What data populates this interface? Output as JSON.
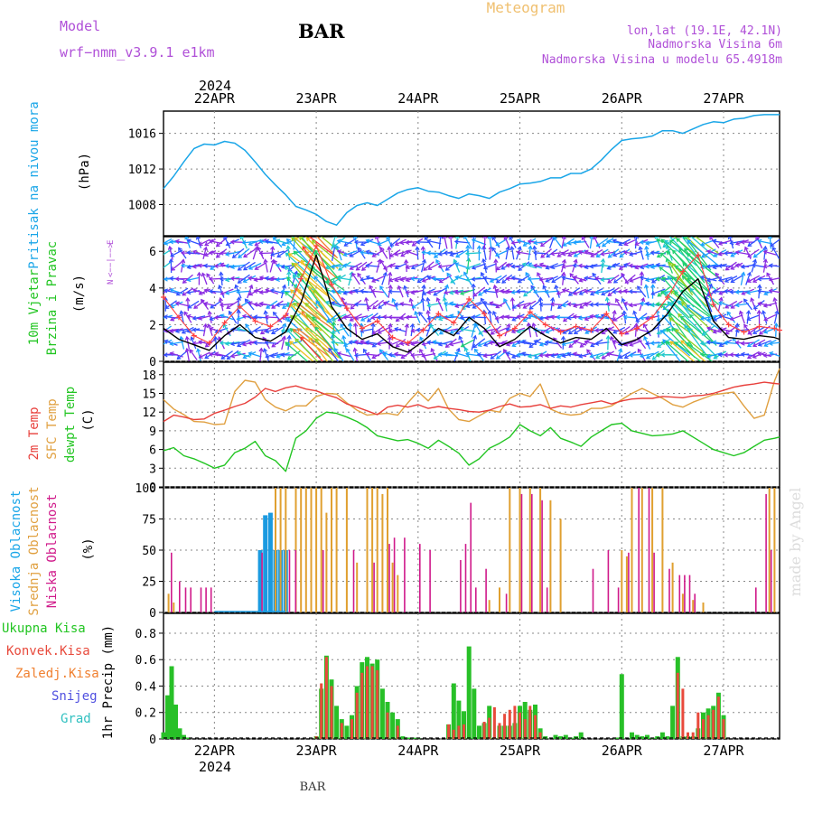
{
  "header": {
    "model_label": "Model",
    "model_name": "wrf−nmm_v3.9.1  e1km",
    "station": "BAR",
    "title": "Meteogram",
    "coords": "lon,lat (19.1E, 42.1N)",
    "elevation": "Nadmorska Visina 6m",
    "model_elevation": "Nadmorska Visina u modelu 65.4918m"
  },
  "footer": {
    "station": "BAR",
    "watermark": "made by Angel"
  },
  "colors": {
    "pressure": "#1aa6e8",
    "temp2m": "#e8403c",
    "sfc_temp": "#e0a040",
    "dewpt": "#22c522",
    "high_cloud": "#1a9ae0",
    "mid_cloud": "#e0a030",
    "low_cloud": "#d01a8a",
    "total_precip": "#28c028",
    "conv_precip": "#e84a3c",
    "freezing_precip": "#f08030",
    "snow": "#5050e0",
    "graupel": "#30c0c0",
    "wind_speed": "#000000",
    "gust": "#ff4040",
    "legend_violet": "#b050d8"
  },
  "chart_data": [
    {
      "type": "line",
      "panel": "pressure",
      "ylabel_parts": [
        "Pritisak na nivou mora",
        "(hPa)"
      ],
      "ylim": [
        1004.5,
        1018.5
      ],
      "yticks": [
        1008,
        1012,
        1016
      ],
      "x": [
        0,
        0.1,
        0.2,
        0.3,
        0.4,
        0.5,
        0.6,
        0.7,
        0.8,
        0.9,
        1.0,
        1.1,
        1.2,
        1.3,
        1.4,
        1.5,
        1.6,
        1.7,
        1.8,
        1.9,
        2.0,
        2.1,
        2.2,
        2.3,
        2.4,
        2.5,
        2.6,
        2.7,
        2.8,
        2.9,
        3.0,
        3.1,
        3.2,
        3.3,
        3.4,
        3.5,
        3.6,
        3.7,
        3.8,
        3.9,
        4.0,
        4.1,
        4.2,
        4.3,
        4.4,
        4.5,
        4.6,
        4.7,
        4.8,
        4.9,
        5.0,
        5.1,
        5.2,
        5.3,
        5.4,
        5.5,
        5.6,
        5.7,
        5.8,
        5.9,
        6.0,
        6.05
      ],
      "values": [
        1009.8,
        1011.2,
        1012.8,
        1014.3,
        1014.8,
        1014.7,
        1015.1,
        1014.9,
        1014.1,
        1012.8,
        1011.4,
        1010.2,
        1009.1,
        1007.8,
        1007.4,
        1006.9,
        1006.1,
        1005.7,
        1007.1,
        1007.9,
        1008.2,
        1007.9,
        1008.6,
        1009.3,
        1009.7,
        1009.9,
        1009.5,
        1009.4,
        1009.0,
        1008.7,
        1009.2,
        1009.0,
        1008.7,
        1009.4,
        1009.8,
        1010.3,
        1010.4,
        1010.6,
        1011.0,
        1011.0,
        1011.5,
        1011.5,
        1012.0,
        1013.0,
        1014.2,
        1015.2,
        1015.4,
        1015.5,
        1015.7,
        1016.3,
        1016.3,
        1016.0,
        1016.5,
        1017.0,
        1017.3,
        1017.2,
        1017.6,
        1017.7,
        1018.0,
        1018.1,
        1018.1,
        1018.1
      ]
    },
    {
      "type": "line",
      "panel": "wind",
      "ylabel_parts": [
        "10m Vjetar",
        "Brzina i Pravac",
        "(m/s)"
      ],
      "compass": [
        "N",
        "W",
        "E",
        "S"
      ],
      "ylim": [
        0,
        6.8
      ],
      "yticks": [
        0,
        2,
        4,
        6
      ],
      "x": [
        0,
        0.15,
        0.3,
        0.45,
        0.6,
        0.75,
        0.9,
        1.05,
        1.2,
        1.35,
        1.5,
        1.65,
        1.8,
        1.95,
        2.1,
        2.25,
        2.4,
        2.55,
        2.7,
        2.85,
        3.0,
        3.15,
        3.3,
        3.45,
        3.6,
        3.75,
        3.9,
        4.05,
        4.2,
        4.35,
        4.5,
        4.65,
        4.8,
        4.95,
        5.1,
        5.25,
        5.4,
        5.55,
        5.7,
        5.85,
        6.0,
        6.05
      ],
      "series": [
        {
          "values": [
            1.8,
            1.2,
            0.9,
            0.6,
            1.4,
            2.0,
            1.3,
            1.1,
            1.6,
            3.2,
            5.8,
            3.0,
            1.8,
            1.2,
            1.5,
            0.8,
            0.5,
            1.1,
            1.8,
            1.4,
            2.4,
            1.8,
            0.8,
            1.2,
            1.9,
            1.4,
            1.0,
            1.3,
            1.2,
            1.8,
            0.9,
            1.2,
            1.7,
            2.6,
            3.8,
            4.5,
            2.2,
            1.3,
            1.2,
            1.4,
            1.3,
            1.2
          ]
        },
        {
          "values": [
            3.5,
            2.4,
            1.4,
            1.0,
            2.1,
            3.0,
            2.2,
            1.9,
            2.5,
            4.5,
            6.3,
            4.2,
            2.9,
            1.8,
            2.2,
            1.3,
            1.0,
            1.7,
            2.6,
            2.1,
            3.4,
            2.6,
            1.4,
            1.8,
            2.7,
            2.0,
            1.6,
            1.9,
            1.7,
            2.6,
            1.5,
            1.8,
            2.4,
            3.5,
            4.9,
            5.8,
            3.1,
            2.0,
            1.6,
            1.9,
            1.8,
            1.7
          ]
        }
      ]
    },
    {
      "type": "line",
      "panel": "temperature",
      "ylabel_parts": [
        "2m Temp",
        "SFC Temp",
        "dewpt Temp",
        "(C)"
      ],
      "ylim": [
        0,
        20
      ],
      "yticks": [
        0,
        3,
        6,
        9,
        12,
        15,
        18
      ],
      "x": [
        0,
        0.1,
        0.2,
        0.3,
        0.4,
        0.5,
        0.6,
        0.7,
        0.8,
        0.9,
        1.0,
        1.1,
        1.2,
        1.3,
        1.4,
        1.5,
        1.6,
        1.7,
        1.8,
        1.9,
        2.0,
        2.1,
        2.2,
        2.3,
        2.4,
        2.5,
        2.6,
        2.7,
        2.8,
        2.9,
        3.0,
        3.1,
        3.2,
        3.3,
        3.4,
        3.5,
        3.6,
        3.7,
        3.8,
        3.9,
        4.0,
        4.1,
        4.2,
        4.3,
        4.4,
        4.5,
        4.6,
        4.7,
        4.8,
        4.9,
        5.0,
        5.1,
        5.2,
        5.3,
        5.4,
        5.5,
        5.6,
        5.7,
        5.8,
        5.9,
        6.0,
        6.05
      ],
      "series": [
        {
          "name": "2m Temp",
          "values": [
            10.5,
            11.5,
            11.2,
            10.8,
            10.9,
            11.8,
            12.3,
            12.9,
            13.4,
            14.4,
            15.8,
            15.3,
            15.9,
            16.2,
            15.7,
            15.4,
            14.8,
            14.3,
            13.3,
            12.8,
            12.2,
            11.6,
            12.8,
            13.1,
            12.8,
            13.2,
            12.6,
            12.9,
            12.6,
            12.4,
            12.1,
            12.0,
            12.3,
            12.9,
            13.3,
            12.8,
            12.9,
            13.2,
            12.6,
            13.0,
            12.8,
            13.2,
            13.5,
            13.8,
            13.3,
            13.8,
            14.1,
            14.2,
            14.2,
            14.5,
            14.4,
            14.3,
            14.6,
            14.7,
            15.0,
            15.5,
            16.0,
            16.3,
            16.5,
            16.8,
            16.6,
            16.5
          ]
        },
        {
          "name": "SFC Temp",
          "values": [
            14.0,
            12.5,
            11.6,
            10.5,
            10.4,
            10.0,
            10.1,
            15.3,
            17.1,
            16.8,
            14.0,
            12.8,
            12.2,
            13.0,
            13.0,
            14.5,
            15.0,
            14.9,
            13.5,
            12.3,
            11.5,
            11.7,
            11.8,
            11.5,
            13.5,
            15.3,
            13.8,
            15.8,
            12.5,
            10.8,
            10.5,
            11.4,
            12.3,
            12.0,
            14.2,
            15.0,
            14.5,
            16.5,
            12.5,
            11.8,
            11.5,
            11.7,
            12.6,
            12.6,
            13.0,
            14.0,
            15.0,
            15.8,
            15.0,
            14.2,
            13.2,
            12.8,
            13.6,
            14.2,
            14.8,
            15.0,
            15.2,
            13.0,
            11.0,
            11.5,
            17.0,
            19.0
          ]
        },
        {
          "name": "dewpt Temp",
          "values": [
            5.8,
            6.3,
            5.0,
            4.5,
            3.8,
            3.0,
            3.5,
            5.5,
            6.2,
            7.3,
            5.0,
            4.2,
            2.5,
            7.8,
            9.0,
            11.0,
            12.0,
            11.8,
            11.2,
            10.5,
            9.5,
            8.2,
            7.8,
            7.4,
            7.6,
            7.0,
            6.2,
            7.5,
            6.5,
            5.4,
            3.5,
            4.5,
            6.2,
            7.0,
            8.0,
            10.0,
            9.0,
            8.2,
            9.5,
            7.8,
            7.2,
            6.5,
            8.0,
            9.0,
            10.0,
            10.2,
            9.0,
            8.6,
            8.2,
            8.3,
            8.5,
            9.0,
            8.0,
            7.0,
            6.0,
            5.5,
            5.0,
            5.5,
            6.5,
            7.5,
            7.8,
            8.0
          ]
        }
      ]
    },
    {
      "type": "bar",
      "panel": "clouds",
      "ylabel_parts": [
        "Visoka Oblacnost",
        "Srednja Oblacnost",
        "Niska Oblacnost",
        "(%)"
      ],
      "ylim": [
        0,
        100
      ],
      "yticks": [
        0,
        25,
        50,
        75,
        100
      ],
      "series": [
        {
          "name": "Visoka Oblacnost",
          "x": [
            0.45,
            0.5,
            0.55,
            0.6,
            0.65,
            0.7,
            0.75,
            0.8,
            0.85,
            0.9,
            0.95,
            1.0,
            1.05,
            1.1,
            1.15,
            1.2
          ],
          "values": [
            0,
            0,
            0,
            0,
            0,
            0,
            0,
            0,
            0,
            0,
            50,
            78,
            80,
            50,
            50,
            50
          ]
        },
        {
          "name": "Srednja Oblacnost",
          "x": [
            0.05,
            0.1,
            1.1,
            1.15,
            1.2,
            1.3,
            1.35,
            1.4,
            1.45,
            1.5,
            1.55,
            1.6,
            1.65,
            1.7,
            1.8,
            1.9,
            2.0,
            2.05,
            2.1,
            2.15,
            2.2,
            2.25,
            2.3,
            3.2,
            3.3,
            3.4,
            3.5,
            3.6,
            3.7,
            3.8,
            3.9,
            4.5,
            4.55,
            4.6,
            4.7,
            4.8,
            4.9,
            5.0,
            5.1,
            5.2,
            5.3,
            5.95,
            6.0
          ],
          "values": [
            15,
            8,
            100,
            100,
            100,
            100,
            100,
            100,
            100,
            100,
            100,
            80,
            100,
            100,
            100,
            40,
            100,
            100,
            100,
            95,
            100,
            40,
            30,
            10,
            20,
            100,
            100,
            100,
            100,
            90,
            75,
            50,
            45,
            100,
            100,
            100,
            100,
            40,
            15,
            10,
            8,
            100,
            100
          ]
        },
        {
          "name": "Niska Oblacnost",
          "x": [
            0.06,
            0.14,
            0.2,
            0.25,
            0.35,
            0.4,
            0.45,
            0.95,
            1.22,
            1.28,
            1.55,
            1.85,
            2.05,
            2.2,
            2.25,
            2.35,
            2.5,
            2.6,
            2.9,
            2.95,
            3.0,
            3.05,
            3.15,
            3.35,
            3.5,
            3.6,
            3.7,
            3.75,
            4.2,
            4.35,
            4.45,
            4.55,
            4.65,
            4.75,
            4.8,
            4.95,
            5.05,
            5.1,
            5.15,
            5.2,
            5.8,
            5.9,
            5.95
          ],
          "values": [
            48,
            25,
            20,
            20,
            20,
            20,
            20,
            48,
            50,
            50,
            50,
            50,
            40,
            55,
            60,
            60,
            55,
            50,
            42,
            55,
            88,
            20,
            35,
            15,
            95,
            95,
            90,
            20,
            35,
            50,
            20,
            48,
            100,
            100,
            48,
            35,
            30,
            30,
            30,
            15,
            20,
            95,
            50
          ]
        }
      ]
    },
    {
      "type": "bar",
      "panel": "precipitation",
      "ylabel_parts": [
        "1hr Precip (mm)"
      ],
      "legend": [
        "Ukupna Kisa",
        "Konvek.Kisa",
        "Zaledj.Kisa",
        "Snijeg",
        "Grad"
      ],
      "ylim": [
        0,
        0.95
      ],
      "yticks": [
        0,
        0.2,
        0.4,
        0.6,
        0.8
      ],
      "series": [
        {
          "name": "Ukupna Kisa",
          "x": [
            0.0,
            0.04,
            0.08,
            0.12,
            0.16,
            0.2,
            0.24,
            1.5,
            1.55,
            1.6,
            1.65,
            1.7,
            1.75,
            1.8,
            1.85,
            1.9,
            1.95,
            2.0,
            2.05,
            2.1,
            2.15,
            2.2,
            2.25,
            2.3,
            2.35,
            2.4,
            2.45,
            2.5,
            2.8,
            2.85,
            2.9,
            2.95,
            3.0,
            3.05,
            3.1,
            3.15,
            3.2,
            3.3,
            3.35,
            3.4,
            3.45,
            3.5,
            3.55,
            3.6,
            3.65,
            3.7,
            3.75,
            3.85,
            3.9,
            3.95,
            4.0,
            4.05,
            4.1,
            4.45,
            4.5,
            4.6,
            4.65,
            4.7,
            4.75,
            4.8,
            4.85,
            4.9,
            4.95,
            5.0,
            5.05,
            5.1,
            5.15,
            5.2,
            5.25,
            5.3,
            5.35,
            5.4,
            5.45,
            5.5
          ],
          "values": [
            0.05,
            0.33,
            0.55,
            0.26,
            0.08,
            0.03,
            0.01,
            0.02,
            0.38,
            0.63,
            0.45,
            0.25,
            0.15,
            0.1,
            0.18,
            0.4,
            0.58,
            0.62,
            0.57,
            0.6,
            0.38,
            0.28,
            0.2,
            0.15,
            0.02,
            0.01,
            0.01,
            0.01,
            0.11,
            0.42,
            0.29,
            0.21,
            0.7,
            0.38,
            0.1,
            0.12,
            0.25,
            0.1,
            0.1,
            0.1,
            0.12,
            0.25,
            0.28,
            0.22,
            0.26,
            0.08,
            0.02,
            0.03,
            0.02,
            0.03,
            0.01,
            0.02,
            0.05,
            0.01,
            0.49,
            0.05,
            0.03,
            0.02,
            0.03,
            0.01,
            0.02,
            0.05,
            0.02,
            0.25,
            0.62,
            0.02,
            0.02,
            0.02,
            0.08,
            0.2,
            0.23,
            0.25,
            0.35,
            0.18
          ]
        },
        {
          "name": "Konvek.Kisa",
          "x": [
            1.5,
            1.55,
            1.6,
            1.65,
            1.75,
            1.85,
            1.9,
            1.95,
            2.0,
            2.05,
            2.1,
            2.2,
            2.3,
            2.8,
            2.85,
            2.9,
            2.95,
            3.15,
            3.2,
            3.25,
            3.3,
            3.35,
            3.4,
            3.45,
            3.5,
            3.55,
            3.6,
            3.65,
            3.7,
            5.05,
            5.1,
            5.15,
            5.2,
            5.25,
            5.3,
            5.35,
            5.4,
            5.45,
            5.5
          ],
          "values": [
            0.02,
            0.42,
            0.62,
            0.4,
            0.12,
            0.15,
            0.35,
            0.5,
            0.55,
            0.55,
            0.52,
            0.2,
            0.1,
            0.11,
            0.07,
            0.1,
            0.11,
            0.13,
            0.16,
            0.24,
            0.12,
            0.19,
            0.22,
            0.25,
            0.2,
            0.15,
            0.25,
            0.18,
            0.05,
            0.5,
            0.38,
            0.05,
            0.05,
            0.2,
            0.15,
            0.18,
            0.22,
            0.32,
            0.15
          ]
        }
      ]
    }
  ],
  "time_axis": {
    "unit": "days",
    "xlim": [
      0,
      6.05
    ],
    "day_labels": [
      "22APR",
      "23APR",
      "24APR",
      "25APR",
      "26APR",
      "27APR"
    ],
    "day_positions": [
      0.5,
      1.5,
      2.5,
      3.5,
      4.5,
      5.5
    ],
    "year": "2024"
  }
}
